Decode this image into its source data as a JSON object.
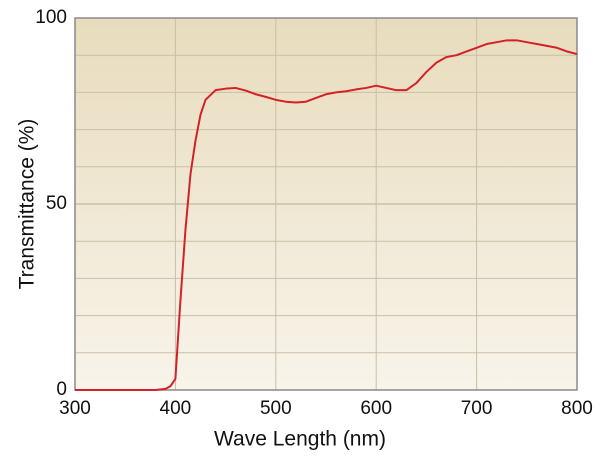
{
  "chart_data": {
    "type": "line",
    "x_label": "Wave Length (nm)",
    "y_label": "Transmittance (%)",
    "x": [
      300,
      350,
      380,
      390,
      395,
      400,
      405,
      410,
      415,
      420,
      425,
      430,
      440,
      450,
      460,
      470,
      480,
      490,
      500,
      510,
      520,
      530,
      540,
      550,
      560,
      570,
      580,
      590,
      600,
      610,
      620,
      630,
      640,
      650,
      660,
      670,
      680,
      690,
      700,
      710,
      720,
      730,
      740,
      750,
      760,
      770,
      780,
      790,
      800
    ],
    "series": [
      {
        "color": "#d42027",
        "values": [
          0,
          0,
          0,
          0.3,
          1,
          3,
          24,
          43,
          58,
          67,
          74,
          78,
          80.6,
          81,
          81.2,
          80.5,
          79.5,
          78.8,
          78,
          77.5,
          77.3,
          77.5,
          78.5,
          79.5,
          80,
          80.3,
          80.8,
          81.2,
          81.8,
          81.2,
          80.6,
          80.6,
          82.5,
          85.5,
          88,
          89.5,
          90,
          91,
          92,
          93,
          93.5,
          94,
          94,
          93.5,
          93,
          92.5,
          92,
          91,
          90.3
        ]
      }
    ],
    "xlim": [
      300,
      800
    ],
    "xticks": [
      300,
      400,
      500,
      600,
      700,
      800
    ],
    "ylim": [
      0,
      100
    ],
    "yticks": [
      0,
      50,
      100
    ],
    "minor_yticks": [
      10,
      20,
      30,
      40,
      60,
      70,
      80,
      90
    ],
    "grid": true
  }
}
